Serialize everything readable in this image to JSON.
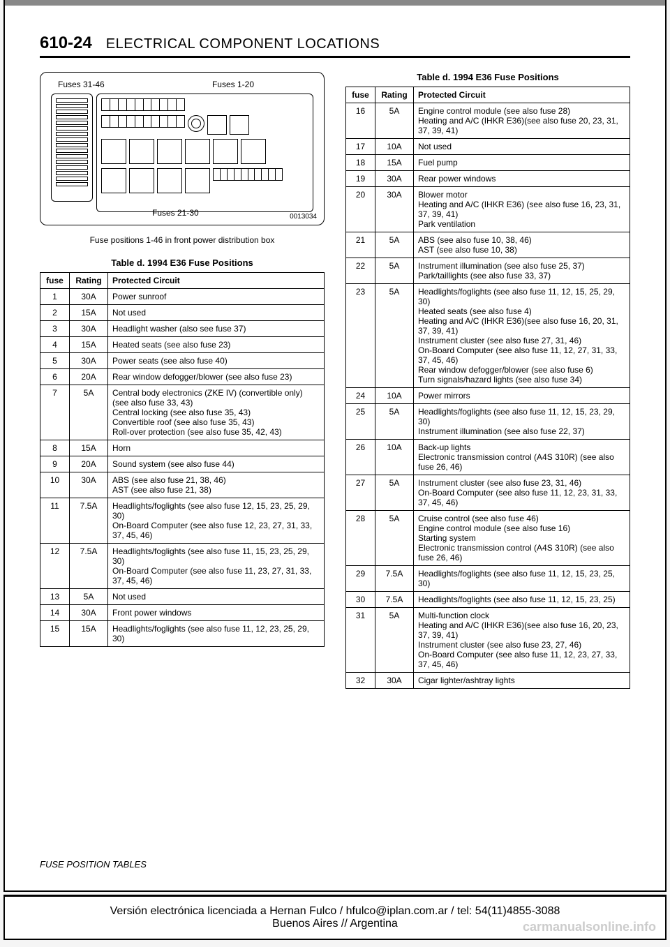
{
  "page": {
    "number": "610-24",
    "title": "ELECTRICAL COMPONENT LOCATIONS",
    "footer_section": "FUSE POSITION TABLES"
  },
  "diagram": {
    "label_top_left": "Fuses 31-46",
    "label_top_right": "Fuses 1-20",
    "label_bottom": "Fuses 21-30",
    "id": "0013034",
    "caption": "Fuse positions 1-46 in front power distribution box"
  },
  "table_title": "Table d. 1994 E36 Fuse Positions",
  "columns": [
    "fuse",
    "Rating",
    "Protected Circuit"
  ],
  "rows_left": [
    {
      "fuse": "1",
      "rating": "30A",
      "circuit": "Power sunroof"
    },
    {
      "fuse": "2",
      "rating": "15A",
      "circuit": "Not used"
    },
    {
      "fuse": "3",
      "rating": "30A",
      "circuit": "Headlight washer (also see fuse 37)"
    },
    {
      "fuse": "4",
      "rating": "15A",
      "circuit": "Heated seats (see also fuse 23)"
    },
    {
      "fuse": "5",
      "rating": "30A",
      "circuit": "Power seats (see also fuse 40)"
    },
    {
      "fuse": "6",
      "rating": "20A",
      "circuit": "Rear window defogger/blower (see also fuse 23)"
    },
    {
      "fuse": "7",
      "rating": "5A",
      "circuit": "Central body electronics (ZKE IV) (convertible only) (see also fuse 33, 43)\nCentral locking (see also fuse 35, 43)\nConvertible roof (see also fuse 35, 43)\nRoll-over protection (see also fuse 35, 42, 43)"
    },
    {
      "fuse": "8",
      "rating": "15A",
      "circuit": "Horn"
    },
    {
      "fuse": "9",
      "rating": "20A",
      "circuit": "Sound system (see also fuse 44)"
    },
    {
      "fuse": "10",
      "rating": "30A",
      "circuit": "ABS (see also fuse 21, 38, 46)\nAST (see also fuse 21, 38)"
    },
    {
      "fuse": "11",
      "rating": "7.5A",
      "circuit": "Headlights/foglights (see also fuse 12, 15, 23, 25, 29, 30)\nOn-Board Computer (see also fuse 12, 23, 27, 31, 33, 37, 45, 46)"
    },
    {
      "fuse": "12",
      "rating": "7.5A",
      "circuit": "Headlights/foglights (see also fuse 11, 15, 23, 25, 29, 30)\nOn-Board Computer (see also fuse 11, 23, 27, 31, 33, 37, 45, 46)"
    },
    {
      "fuse": "13",
      "rating": "5A",
      "circuit": "Not used"
    },
    {
      "fuse": "14",
      "rating": "30A",
      "circuit": "Front power windows"
    },
    {
      "fuse": "15",
      "rating": "15A",
      "circuit": "Headlights/foglights (see also fuse 11, 12, 23, 25, 29, 30)"
    }
  ],
  "rows_right": [
    {
      "fuse": "16",
      "rating": "5A",
      "circuit": "Engine control module (see also fuse 28)\nHeating and A/C (IHKR E36)(see also fuse 20, 23, 31, 37, 39, 41)"
    },
    {
      "fuse": "17",
      "rating": "10A",
      "circuit": "Not used"
    },
    {
      "fuse": "18",
      "rating": "15A",
      "circuit": "Fuel pump"
    },
    {
      "fuse": "19",
      "rating": "30A",
      "circuit": "Rear power windows"
    },
    {
      "fuse": "20",
      "rating": "30A",
      "circuit": "Blower motor\nHeating and A/C (IHKR E36) (see also fuse 16, 23, 31, 37, 39, 41)\nPark ventilation"
    },
    {
      "fuse": "21",
      "rating": "5A",
      "circuit": "ABS (see also fuse 10, 38, 46)\nAST (see also fuse 10, 38)"
    },
    {
      "fuse": "22",
      "rating": "5A",
      "circuit": "Instrument illumination (see also fuse 25, 37)\nPark/taillights (see also fuse 33, 37)"
    },
    {
      "fuse": "23",
      "rating": "5A",
      "circuit": "Headlights/foglights (see also fuse 11, 12, 15, 25, 29, 30)\nHeated seats (see also fuse 4)\nHeating and A/C (IHKR E36)(see also fuse 16, 20, 31, 37, 39, 41)\nInstrument cluster (see also fuse 27, 31, 46)\nOn-Board Computer (see also fuse 11, 12, 27, 31, 33, 37, 45, 46)\nRear window defogger/blower (see also fuse 6)\nTurn signals/hazard lights (see also fuse 34)"
    },
    {
      "fuse": "24",
      "rating": "10A",
      "circuit": "Power mirrors"
    },
    {
      "fuse": "25",
      "rating": "5A",
      "circuit": "Headlights/foglights (see also fuse 11, 12, 15, 23, 29, 30)\nInstrument illumination (see also fuse 22, 37)"
    },
    {
      "fuse": "26",
      "rating": "10A",
      "circuit": "Back-up lights\nElectronic transmission control (A4S 310R) (see also fuse 26, 46)"
    },
    {
      "fuse": "27",
      "rating": "5A",
      "circuit": "Instrument cluster (see also fuse 23, 31, 46)\nOn-Board Computer (see also fuse 11, 12, 23, 31, 33, 37, 45, 46)"
    },
    {
      "fuse": "28",
      "rating": "5A",
      "circuit": "Cruise control (see also fuse 46)\nEngine control module (see also fuse 16)\nStarting system\nElectronic transmission control (A4S 310R) (see also fuse 26, 46)"
    },
    {
      "fuse": "29",
      "rating": "7.5A",
      "circuit": "Headlights/foglights (see also fuse 11, 12, 15, 23, 25, 30)"
    },
    {
      "fuse": "30",
      "rating": "7.5A",
      "circuit": "Headlights/foglights (see also fuse 11, 12, 15, 23, 25)"
    },
    {
      "fuse": "31",
      "rating": "5A",
      "circuit": "Multi-function clock\nHeating and A/C (IHKR E36)(see also fuse 16, 20, 23, 37, 39, 41)\nInstrument cluster (see also fuse 23, 27, 46)\nOn-Board Computer (see also fuse 11, 12, 23, 27, 33, 37, 45, 46)"
    },
    {
      "fuse": "32",
      "rating": "30A",
      "circuit": "Cigar lighter/ashtray lights"
    }
  ],
  "license": {
    "line1": "Versión electrónica licenciada a Hernan Fulco / hfulco@iplan.com.ar / tel: 54(11)4855-3088",
    "line2": "Buenos Aires // Argentina"
  },
  "watermark": "carmanualsonline.info"
}
